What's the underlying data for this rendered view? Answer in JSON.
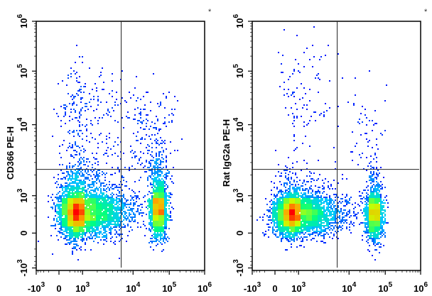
{
  "chart_data": [
    {
      "type": "scatter",
      "subtype": "flow-cytometry-density",
      "ylabel": "CD366 PE-H",
      "xlabel": "",
      "corner_mark": "*",
      "x_ticks": [
        {
          "value": -1000,
          "base": "-10",
          "exp": "3"
        },
        {
          "value": 0,
          "base": "0",
          "exp": ""
        },
        {
          "value": 1000,
          "base": "10",
          "exp": "3"
        },
        {
          "value": 10000,
          "base": "10",
          "exp": "4"
        },
        {
          "value": 100000,
          "base": "10",
          "exp": "5"
        },
        {
          "value": 1000000,
          "base": "10",
          "exp": "6"
        }
      ],
      "y_ticks": [
        {
          "value": -1000,
          "base": "-10",
          "exp": "3"
        },
        {
          "value": 0,
          "base": "0",
          "exp": ""
        },
        {
          "value": 1000,
          "base": "10",
          "exp": "3"
        },
        {
          "value": 10000,
          "base": "10",
          "exp": "4"
        },
        {
          "value": 100000,
          "base": "10",
          "exp": "5"
        },
        {
          "value": 1000000,
          "base": "10",
          "exp": "6"
        }
      ],
      "xlim": [
        -1000,
        1000000
      ],
      "ylim": [
        -1000,
        1000000
      ],
      "scale": "biexponential",
      "quadrant_gate": {
        "x": 5900,
        "y": 2400
      },
      "populations": [
        {
          "center_x": 800,
          "center_y": 300,
          "spread_x_decades": 0.45,
          "spread_y_decades": 0.35,
          "events": 5200
        },
        {
          "center_x": 50000,
          "center_y": 400,
          "spread_x_decades": 0.12,
          "spread_y_decades": 0.4,
          "events": 2000
        },
        {
          "center_x": 1000,
          "center_y": 8000,
          "spread_x_decades": 0.5,
          "spread_y_decades": 0.6,
          "events": 350
        },
        {
          "center_x": 30000,
          "center_y": 6000,
          "spread_x_decades": 0.35,
          "spread_y_decades": 0.45,
          "events": 180
        }
      ],
      "colormap": [
        "#0000ff",
        "#00c8ff",
        "#00ff80",
        "#c8ff00",
        "#ffa000",
        "#ff0000"
      ]
    },
    {
      "type": "scatter",
      "subtype": "flow-cytometry-density",
      "ylabel": "Rat IgG2a PE-H",
      "xlabel": "",
      "corner_mark": "*",
      "x_ticks": [
        {
          "value": -1000,
          "base": "-10",
          "exp": "3"
        },
        {
          "value": 0,
          "base": "0",
          "exp": ""
        },
        {
          "value": 1000,
          "base": "10",
          "exp": "3"
        },
        {
          "value": 10000,
          "base": "10",
          "exp": "4"
        },
        {
          "value": 100000,
          "base": "10",
          "exp": "5"
        },
        {
          "value": 1000000,
          "base": "10",
          "exp": "6"
        }
      ],
      "y_ticks": [
        {
          "value": -1000,
          "base": "-10",
          "exp": "3"
        },
        {
          "value": 0,
          "base": "0",
          "exp": ""
        },
        {
          "value": 1000,
          "base": "10",
          "exp": "3"
        },
        {
          "value": 10000,
          "base": "10",
          "exp": "4"
        },
        {
          "value": 100000,
          "base": "10",
          "exp": "5"
        },
        {
          "value": 1000000,
          "base": "10",
          "exp": "6"
        }
      ],
      "xlim": [
        -1000,
        1000000
      ],
      "ylim": [
        -1000,
        1000000
      ],
      "scale": "biexponential",
      "quadrant_gate": {
        "x": 5900,
        "y": 2400
      },
      "populations": [
        {
          "center_x": 700,
          "center_y": 250,
          "spread_x_decades": 0.45,
          "spread_y_decades": 0.3,
          "events": 5200
        },
        {
          "center_x": 50000,
          "center_y": 250,
          "spread_x_decades": 0.12,
          "spread_y_decades": 0.35,
          "events": 1800
        },
        {
          "center_x": 1000,
          "center_y": 20000,
          "spread_x_decades": 0.4,
          "spread_y_decades": 0.7,
          "events": 120
        },
        {
          "center_x": 30000,
          "center_y": 8000,
          "spread_x_decades": 0.3,
          "spread_y_decades": 0.45,
          "events": 60
        }
      ],
      "colormap": [
        "#0000ff",
        "#00c8ff",
        "#00ff80",
        "#c8ff00",
        "#ffa000",
        "#ff0000"
      ]
    }
  ]
}
